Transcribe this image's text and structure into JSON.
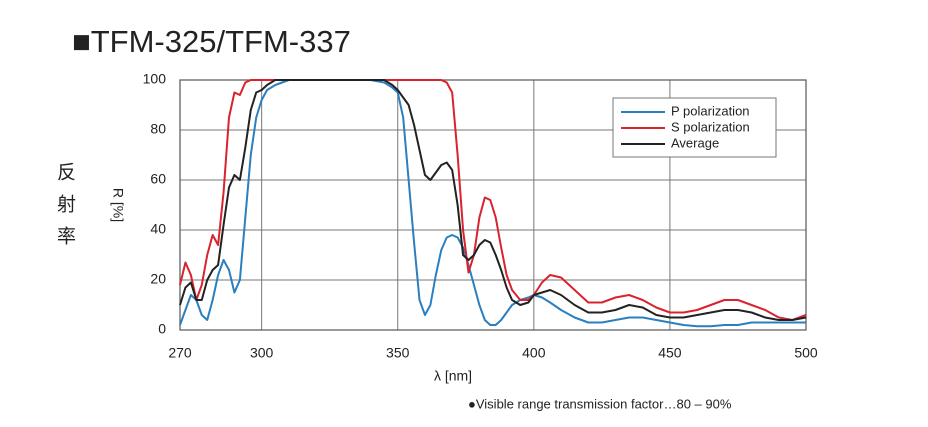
{
  "chart_data": {
    "type": "line",
    "title": "■TFM-325/TFM-337",
    "side_label": "反射率",
    "ylabel": "R [%]",
    "xlabel": "λ [nm]",
    "footnote": "●Visible range transmission factor…80 – 90%",
    "xlim": [
      270,
      500
    ],
    "xticks": [
      270,
      300,
      350,
      400,
      450,
      500
    ],
    "ylim": [
      0,
      100
    ],
    "yticks": [
      0,
      20,
      40,
      60,
      80,
      100
    ],
    "grid": true,
    "legend": "upper right",
    "x": [
      270,
      272,
      274,
      276,
      278,
      280,
      282,
      284,
      286,
      288,
      290,
      292,
      294,
      296,
      298,
      300,
      302,
      305,
      310,
      320,
      330,
      340,
      345,
      348,
      350,
      352,
      354,
      356,
      358,
      360,
      362,
      364,
      366,
      368,
      370,
      372,
      374,
      376,
      378,
      380,
      382,
      384,
      386,
      388,
      390,
      392,
      395,
      398,
      400,
      403,
      406,
      410,
      415,
      420,
      425,
      430,
      435,
      440,
      445,
      450,
      455,
      460,
      465,
      470,
      475,
      480,
      485,
      490,
      495,
      500
    ],
    "series": [
      {
        "name": "P polarization",
        "color": "#2a7fc0",
        "values": [
          2,
          8,
          14,
          12,
          6,
          4,
          12,
          22,
          28,
          24,
          15,
          20,
          45,
          70,
          85,
          92,
          96,
          98,
          100,
          100,
          100,
          100,
          99,
          97,
          95,
          85,
          60,
          35,
          12,
          6,
          10,
          22,
          32,
          37,
          38,
          37,
          33,
          26,
          18,
          10,
          4,
          2,
          2,
          4,
          7,
          10,
          12,
          13,
          14,
          13,
          11,
          8,
          5,
          3,
          3,
          4,
          5,
          5,
          4,
          3,
          2,
          1.5,
          1.5,
          2,
          2,
          3,
          3,
          3,
          3,
          3
        ]
      },
      {
        "name": "S polarization",
        "color": "#d9232e",
        "values": [
          18,
          27,
          22,
          12,
          18,
          30,
          38,
          34,
          55,
          85,
          95,
          94,
          99,
          100,
          100,
          100,
          100,
          100,
          100,
          100,
          100,
          100,
          100,
          100,
          100,
          100,
          100,
          100,
          100,
          100,
          100,
          100,
          100,
          99,
          95,
          70,
          40,
          23,
          30,
          45,
          53,
          52,
          45,
          33,
          22,
          16,
          12,
          12,
          14,
          19,
          22,
          21,
          16,
          11,
          11,
          13,
          14,
          12,
          9,
          7,
          7,
          8,
          10,
          12,
          12,
          10,
          8,
          5,
          4,
          6
        ]
      },
      {
        "name": "Average",
        "color": "#222222",
        "values": [
          10,
          17,
          19,
          12,
          12,
          20,
          24,
          26,
          42,
          57,
          62,
          60,
          73,
          88,
          95,
          96,
          98,
          100,
          100,
          100,
          100,
          100,
          100,
          98,
          96,
          93,
          90,
          82,
          72,
          62,
          60,
          63,
          66,
          67,
          64,
          50,
          30,
          28,
          30,
          34,
          36,
          35,
          30,
          24,
          17,
          12,
          10,
          11,
          14,
          15,
          16,
          14,
          10,
          7,
          7,
          8,
          10,
          9,
          6,
          5,
          5,
          6,
          7,
          8,
          8,
          7,
          5,
          4,
          4,
          5
        ]
      }
    ]
  }
}
